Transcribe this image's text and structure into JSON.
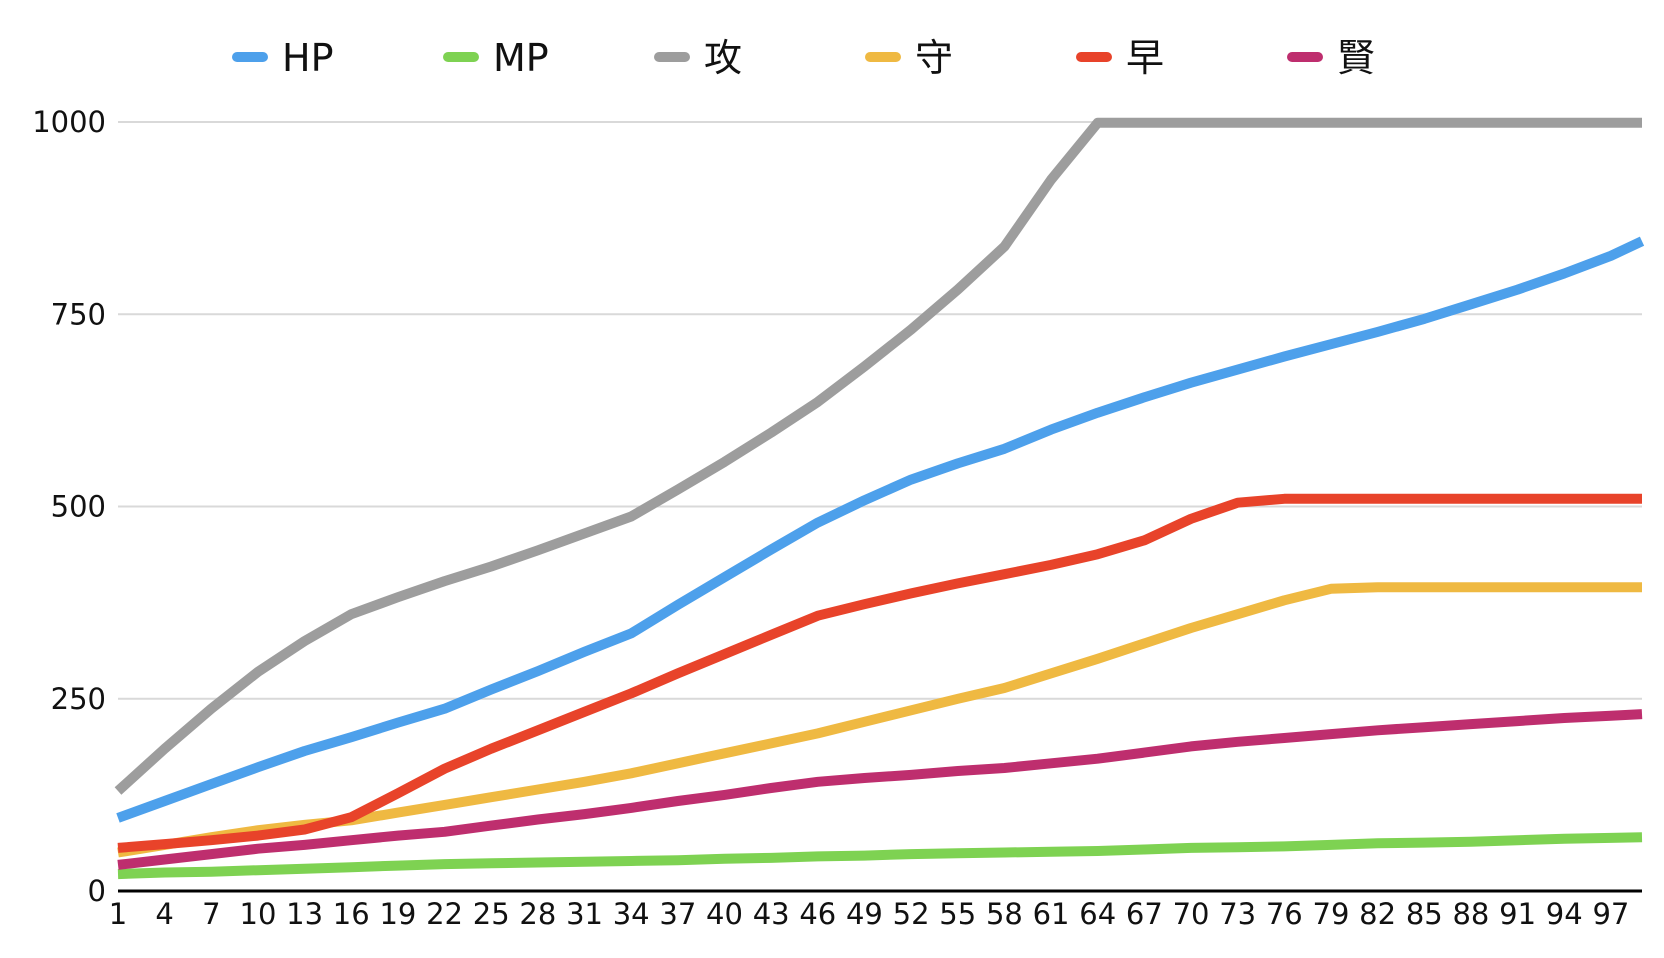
{
  "chart_data": {
    "type": "line",
    "title": "",
    "xlabel": "",
    "ylabel": "",
    "xlim": [
      1,
      99
    ],
    "ylim": [
      0,
      1000
    ],
    "grid": true,
    "legend_position": "top",
    "background_color": "#ffffff",
    "grid_color": "#d9d9d9",
    "axis_color": "#000000",
    "label_color": "#111111",
    "y_ticks": [
      0,
      250,
      500,
      750,
      1000
    ],
    "y_tick_labels": [
      "0",
      "250",
      "500",
      "750",
      "1000"
    ],
    "x": [
      1,
      4,
      7,
      10,
      13,
      16,
      19,
      22,
      25,
      28,
      31,
      34,
      37,
      40,
      43,
      46,
      49,
      52,
      55,
      58,
      61,
      64,
      67,
      70,
      73,
      76,
      79,
      82,
      85,
      88,
      91,
      94,
      97,
      99
    ],
    "x_tick_labels": [
      "1",
      "4",
      "7",
      "10",
      "13",
      "16",
      "19",
      "22",
      "25",
      "28",
      "31",
      "34",
      "37",
      "40",
      "43",
      "46",
      "49",
      "52",
      "55",
      "58",
      "61",
      "64",
      "67",
      "70",
      "73",
      "76",
      "79",
      "82",
      "85",
      "88",
      "91",
      "94",
      "97"
    ],
    "series": [
      {
        "id": "hp",
        "name": "HP",
        "color": "#4DA0EB",
        "values": [
          95,
          117,
          139,
          161,
          182,
          200,
          219,
          237,
          262,
          286,
          311,
          335,
          372,
          408,
          444,
          479,
          508,
          535,
          556,
          575,
          600,
          622,
          642,
          661,
          678,
          695,
          711,
          727,
          744,
          763,
          782,
          803,
          826,
          845
        ]
      },
      {
        "id": "mp",
        "name": "MP",
        "color": "#7ED252",
        "values": [
          22,
          24,
          25,
          27,
          29,
          31,
          33,
          35,
          36,
          37,
          38,
          39,
          40,
          42,
          43,
          45,
          46,
          48,
          49,
          50,
          51,
          52,
          54,
          56,
          57,
          58,
          60,
          62,
          63,
          64,
          66,
          68,
          69,
          70
        ]
      },
      {
        "id": "atk",
        "name": "攻",
        "color": "#9D9D9D",
        "values": [
          130,
          185,
          237,
          285,
          325,
          360,
          382,
          403,
          422,
          443,
          465,
          487,
          522,
          558,
          596,
          636,
          682,
          730,
          782,
          838,
          925,
          999,
          999,
          999,
          999,
          999,
          999,
          999,
          999,
          999,
          999,
          999,
          999,
          999
        ]
      },
      {
        "id": "def",
        "name": "守",
        "color": "#EFB942",
        "values": [
          50,
          60,
          70,
          79,
          86,
          92,
          102,
          112,
          122,
          132,
          142,
          153,
          166,
          179,
          192,
          205,
          220,
          235,
          250,
          264,
          283,
          302,
          322,
          342,
          360,
          378,
          393,
          395,
          395,
          395,
          395,
          395,
          395,
          395
        ]
      },
      {
        "id": "agi",
        "name": "早",
        "color": "#E8432A",
        "values": [
          56,
          61,
          66,
          72,
          80,
          96,
          127,
          159,
          185,
          209,
          233,
          257,
          283,
          308,
          333,
          358,
          373,
          387,
          400,
          412,
          424,
          438,
          456,
          484,
          505,
          510,
          510,
          510,
          510,
          510,
          510,
          510,
          510,
          510
        ]
      },
      {
        "id": "wis",
        "name": "賢",
        "color": "#BE2E6E",
        "values": [
          34,
          41,
          48,
          55,
          60,
          66,
          72,
          77,
          85,
          93,
          100,
          108,
          117,
          125,
          134,
          142,
          147,
          151,
          156,
          160,
          166,
          172,
          180,
          188,
          194,
          199,
          204,
          209,
          213,
          217,
          221,
          225,
          228,
          230
        ]
      }
    ]
  }
}
